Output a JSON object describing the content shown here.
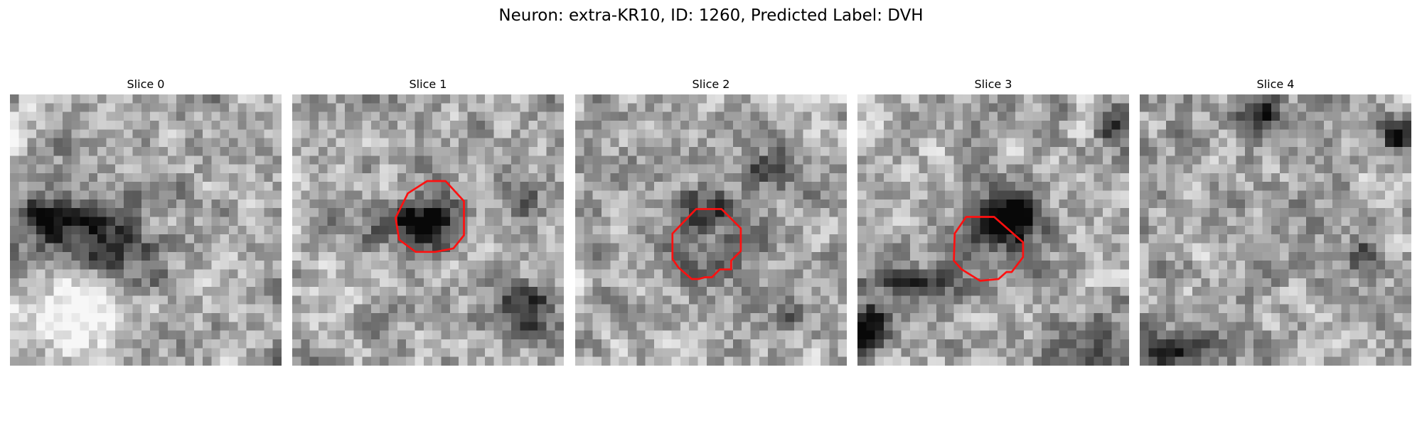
{
  "figure": {
    "title": "Neuron: extra-KR10, ID: 1260, Predicted Label: DVH",
    "grid_size": 31,
    "roi_color": "#ff1010",
    "colormap": "grayscale"
  },
  "panels": [
    {
      "title": "Slice 0",
      "seed": 11,
      "blobs": [
        {
          "cx": 3,
          "cy": 14,
          "rx": 6,
          "ry": 3,
          "a": -0.5
        },
        {
          "cx": 10,
          "cy": 16,
          "rx": 5,
          "ry": 4,
          "a": -0.4
        },
        {
          "cx": 15,
          "cy": 20,
          "rx": 3,
          "ry": 3,
          "a": -0.25
        },
        {
          "cx": 7,
          "cy": 25,
          "rx": 6,
          "ry": 4,
          "a": 0.45
        },
        {
          "cx": 18,
          "cy": 28,
          "rx": 4,
          "ry": 3,
          "a": -0.1
        }
      ],
      "roi": []
    },
    {
      "title": "Slice 1",
      "seed": 23,
      "blobs": [
        {
          "cx": 15,
          "cy": 14,
          "rx": 3,
          "ry": 3,
          "a": -0.65
        },
        {
          "cx": 12,
          "cy": 15,
          "rx": 6,
          "ry": 2,
          "a": -0.3
        },
        {
          "cx": 26,
          "cy": 24,
          "rx": 4,
          "ry": 3,
          "a": -0.55
        },
        {
          "cx": 26,
          "cy": 12,
          "rx": 2,
          "ry": 2,
          "a": -0.3
        },
        {
          "cx": 5,
          "cy": 20,
          "rx": 4,
          "ry": 4,
          "a": 0.15
        }
      ],
      "roi": [
        [
          15.4,
          9.9
        ],
        [
          17.5,
          9.9
        ],
        [
          19.6,
          12.2
        ],
        [
          19.6,
          16.1
        ],
        [
          18.4,
          17.6
        ],
        [
          16.3,
          18.0
        ],
        [
          14.1,
          18.0
        ],
        [
          12.2,
          16.6
        ],
        [
          11.8,
          14.1
        ],
        [
          13.2,
          11.3
        ]
      ]
    },
    {
      "title": "Slice 2",
      "seed": 37,
      "blobs": [
        {
          "cx": 15,
          "cy": 16,
          "rx": 4,
          "ry": 4,
          "a": -0.45
        },
        {
          "cx": 15,
          "cy": 16,
          "rx": 2,
          "ry": 2,
          "a": 0.35
        },
        {
          "cx": 22,
          "cy": 8,
          "rx": 3,
          "ry": 2,
          "a": -0.45
        },
        {
          "cx": 14,
          "cy": 12,
          "rx": 4,
          "ry": 2,
          "a": -0.25
        },
        {
          "cx": 24,
          "cy": 25,
          "rx": 3,
          "ry": 3,
          "a": -0.15
        }
      ],
      "roi": [
        [
          13.8,
          13.1
        ],
        [
          16.7,
          13.1
        ],
        [
          18.9,
          15.3
        ],
        [
          18.9,
          17.9
        ],
        [
          17.8,
          19.0
        ],
        [
          17.8,
          20.0
        ],
        [
          16.5,
          20.0
        ],
        [
          15.6,
          20.9
        ],
        [
          14.8,
          20.9
        ],
        [
          14.1,
          21.1
        ],
        [
          13.3,
          21.1
        ],
        [
          11.8,
          19.8
        ],
        [
          11.1,
          18.8
        ],
        [
          11.1,
          15.9
        ]
      ]
    },
    {
      "title": "Slice 3",
      "seed": 53,
      "blobs": [
        {
          "cx": 15,
          "cy": 14,
          "rx": 4,
          "ry": 3,
          "a": -0.55
        },
        {
          "cx": 18,
          "cy": 13,
          "rx": 3,
          "ry": 4,
          "a": -0.45
        },
        {
          "cx": 6,
          "cy": 21,
          "rx": 6,
          "ry": 2,
          "a": -0.4
        },
        {
          "cx": 1,
          "cy": 26,
          "rx": 2,
          "ry": 3,
          "a": -0.7
        },
        {
          "cx": 29,
          "cy": 3,
          "rx": 2,
          "ry": 2,
          "a": -0.5
        },
        {
          "cx": 26,
          "cy": 27,
          "rx": 3,
          "ry": 3,
          "a": -0.3
        }
      ],
      "roi": [
        [
          12.4,
          14.0
        ],
        [
          15.6,
          14.0
        ],
        [
          18.9,
          16.9
        ],
        [
          18.9,
          18.6
        ],
        [
          17.6,
          20.3
        ],
        [
          17.0,
          20.3
        ],
        [
          16.1,
          21.1
        ],
        [
          15.0,
          21.2
        ],
        [
          14.0,
          21.3
        ],
        [
          11.9,
          20.0
        ],
        [
          11.0,
          19.0
        ],
        [
          11.1,
          15.9
        ]
      ]
    },
    {
      "title": "Slice 4",
      "seed": 71,
      "blobs": [
        {
          "cx": 13,
          "cy": 2,
          "rx": 4,
          "ry": 2,
          "a": -0.5
        },
        {
          "cx": 29,
          "cy": 4,
          "rx": 2,
          "ry": 2,
          "a": -0.55
        },
        {
          "cx": 3,
          "cy": 29,
          "rx": 6,
          "ry": 2,
          "a": -0.5
        },
        {
          "cx": 25,
          "cy": 18,
          "rx": 2,
          "ry": 2,
          "a": -0.3
        },
        {
          "cx": 10,
          "cy": 25,
          "rx": 3,
          "ry": 3,
          "a": -0.15
        }
      ],
      "roi": []
    }
  ]
}
